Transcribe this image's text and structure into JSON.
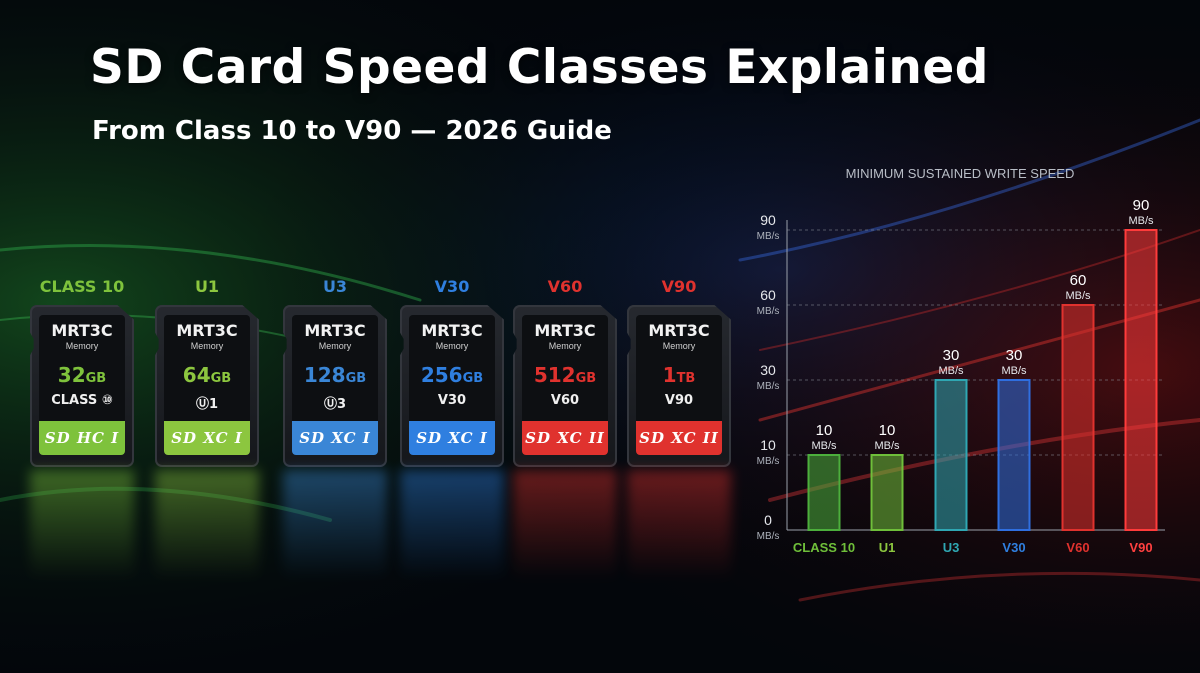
{
  "header": {
    "title": "SD Card Speed Classes Explained",
    "subtitle": "From Class 10 to V90 — 2026 Guide"
  },
  "cards": [
    {
      "label": "CLASS 10",
      "brand": "MRT3C",
      "brand_sub": "Memory",
      "capacity_num": "32",
      "capacity_unit": "GB",
      "speed_mark": "CLASS ⑩",
      "logo": "SD HC I",
      "color": "#7ec23c"
    },
    {
      "label": "U1",
      "brand": "MRT3C",
      "brand_sub": "Memory",
      "capacity_num": "64",
      "capacity_unit": "GB",
      "speed_mark": "Ⓤ1",
      "logo": "SD XC I",
      "color": "#8cc63f"
    },
    {
      "label": "U3",
      "brand": "MRT3C",
      "brand_sub": "Memory",
      "capacity_num": "128",
      "capacity_unit": "GB",
      "speed_mark": "Ⓤ3",
      "logo": "SD XC I",
      "color": "#3a86d6"
    },
    {
      "label": "V30",
      "brand": "MRT3C",
      "brand_sub": "Memory",
      "capacity_num": "256",
      "capacity_unit": "GB",
      "speed_mark": "V30",
      "logo": "SD XC I",
      "color": "#2f7fe0"
    },
    {
      "label": "V60",
      "brand": "MRT3C",
      "brand_sub": "Memory",
      "capacity_num": "512",
      "capacity_unit": "GB",
      "speed_mark": "V60",
      "logo": "SD XC II",
      "color": "#e0322e"
    },
    {
      "label": "V90",
      "brand": "MRT3C",
      "brand_sub": "Memory",
      "capacity_num": "1",
      "capacity_unit": "TB",
      "speed_mark": "V90",
      "logo": "SD XC II",
      "color": "#e0322e"
    }
  ],
  "colors": {
    "class10": "#6fbf3a",
    "u1": "#8cc63f",
    "u3": "#2fa7b3",
    "v30": "#2f6fe0",
    "v60": "#e0322e",
    "v90": "#ff4040"
  },
  "chart_data": {
    "type": "bar",
    "title": "MINIMUM SUSTAINED WRITE SPEED",
    "categories": [
      "CLASS 10",
      "U1",
      "U3",
      "V30",
      "V60",
      "V90"
    ],
    "values": [
      10,
      10,
      30,
      30,
      60,
      90
    ],
    "value_labels": [
      "10",
      "10",
      "30",
      "30",
      "60",
      "90"
    ],
    "unit_label": "MB/s",
    "yticks": [
      "0",
      "10",
      "30",
      "60",
      "90"
    ],
    "ytick_unit": "MB/s",
    "bar_colors": [
      "#4caf3c",
      "#6fbf3a",
      "#2fa7b3",
      "#2f6fe0",
      "#e0322e",
      "#ff3b3b"
    ],
    "category_colors": [
      "#6fbf3a",
      "#8cc63f",
      "#2fa7b3",
      "#2f7fe0",
      "#e0322e",
      "#ff4040"
    ],
    "ylim": [
      0,
      90
    ],
    "grid": true,
    "axis_scale": "piecewise ticks at 0, 10, 30, 60, 90 evenly spaced"
  }
}
